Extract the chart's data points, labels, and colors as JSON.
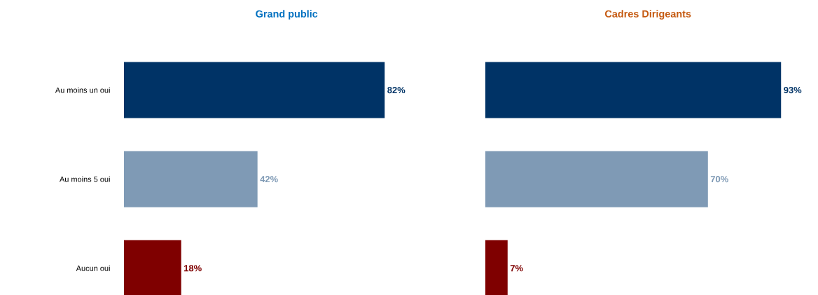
{
  "chart_data": [
    {
      "type": "bar",
      "orientation": "horizontal",
      "title": "Grand public",
      "categories": [
        "Au moins un oui",
        "Au moins 5 oui",
        "Aucun oui"
      ],
      "values": [
        82,
        42,
        18
      ],
      "colors": [
        "#003366",
        "#7f9ab5",
        "#7f0000"
      ],
      "value_labels": [
        "82%",
        "42%",
        "18%"
      ]
    },
    {
      "type": "bar",
      "orientation": "horizontal",
      "title": "Cadres Dirigeants",
      "categories": [
        null,
        null,
        null
      ],
      "values": [
        93,
        70,
        7
      ],
      "colors": [
        "#003366",
        "#7f9ab5",
        "#7f0000"
      ],
      "value_labels": [
        "93%",
        "70%",
        "7%"
      ]
    }
  ]
}
